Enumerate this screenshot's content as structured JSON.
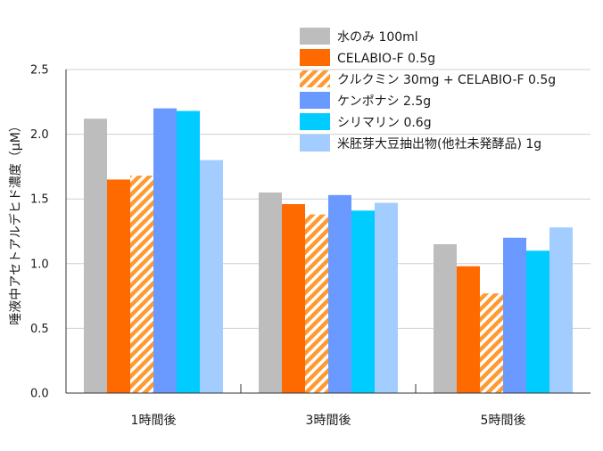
{
  "chart_data": {
    "type": "bar",
    "title": "",
    "xlabel": "",
    "ylabel": "唾液中アセトアルデヒド濃度（μM）",
    "ylim": [
      0,
      2.5
    ],
    "yticks": [
      "0.0",
      "0.5",
      "1.0",
      "1.5",
      "2.0",
      "2.5"
    ],
    "grid": true,
    "legend_position": "top-right",
    "categories": [
      "1時間後",
      "3時間後",
      "5時間後"
    ],
    "series": [
      {
        "name": "水のみ 100ml",
        "color": "#bdbdbd",
        "pattern": "solid",
        "values": [
          2.12,
          1.55,
          1.15
        ]
      },
      {
        "name": "CELABIO-F 0.5g",
        "color": "#ff6a00",
        "pattern": "solid",
        "values": [
          1.65,
          1.46,
          0.98
        ]
      },
      {
        "name": "クルクミン 30mg + CELABIO-F 0.5g",
        "color": "#ff9a33",
        "pattern": "hatch",
        "values": [
          1.68,
          1.38,
          0.77
        ]
      },
      {
        "name": "ケンポナシ 2.5g",
        "color": "#6a9aff",
        "pattern": "solid",
        "values": [
          2.2,
          1.53,
          1.2
        ]
      },
      {
        "name": "シリマリン 0.6g",
        "color": "#00ccff",
        "pattern": "solid",
        "values": [
          2.18,
          1.41,
          1.1
        ]
      },
      {
        "name": "米胚芽大豆抽出物(他社未発酵品) 1g",
        "color": "#a3ccff",
        "pattern": "solid",
        "values": [
          1.8,
          1.47,
          1.28
        ]
      }
    ]
  }
}
